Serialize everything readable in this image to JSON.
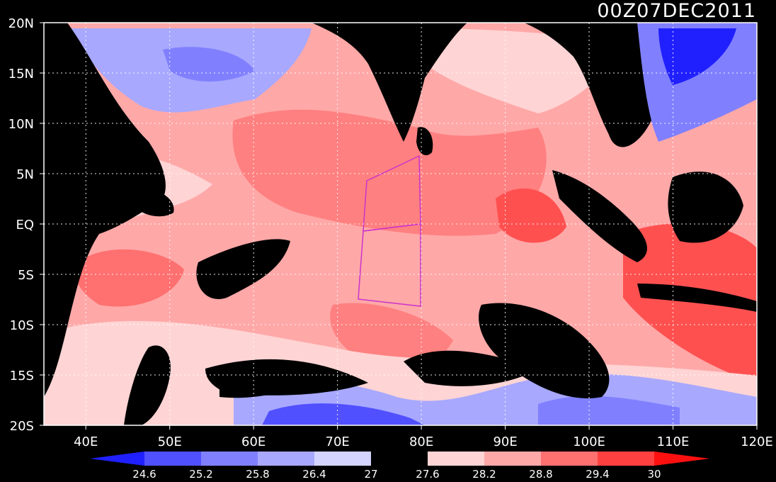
{
  "title": "00Z07DEC2011",
  "map": {
    "lat_labels": [
      "20N",
      "15N",
      "10N",
      "5N",
      "EQ",
      "5S",
      "10S",
      "15S",
      "20S"
    ],
    "lon_labels": [
      "40E",
      "50E",
      "60E",
      "70E",
      "80E",
      "90E",
      "100E",
      "110E",
      "120E"
    ],
    "lon_range": [
      35,
      120
    ],
    "lat_range": [
      -20,
      20
    ],
    "grid": "dotted",
    "land_color": "#000000",
    "box_color": "#cc33cc"
  },
  "colorbar": {
    "levels": [
      "24.6",
      "25.2",
      "25.8",
      "26.4",
      "27",
      "27.6",
      "28.2",
      "28.8",
      "29.4",
      "30"
    ],
    "colors": [
      "#2020ff",
      "#5050ff",
      "#8080ff",
      "#a8a8ff",
      "#d4d4ff",
      "#000000",
      "#ffd4d4",
      "#ffa8a8",
      "#ff7070",
      "#ff4040",
      "#ff1010"
    ]
  }
}
